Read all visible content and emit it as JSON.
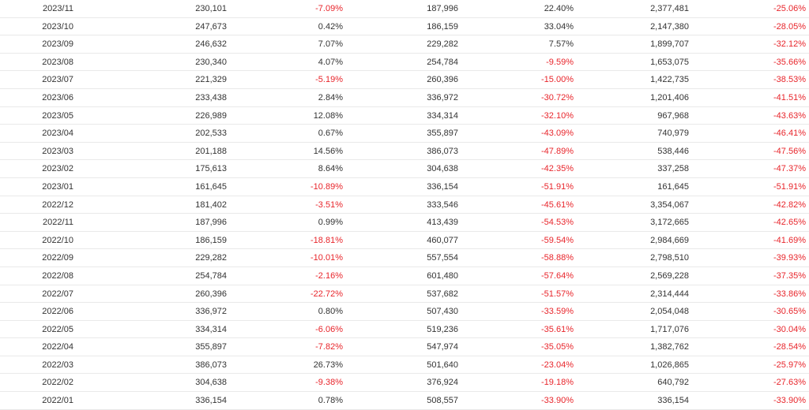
{
  "colors": {
    "text": "#333333",
    "negative": "#e8252b",
    "divider": "#e9e9e9"
  },
  "table": {
    "rows": [
      [
        "2023/11",
        "230,101",
        "-7.09%",
        "187,996",
        "22.40%",
        "2,377,481",
        "-25.06%"
      ],
      [
        "2023/10",
        "247,673",
        "0.42%",
        "186,159",
        "33.04%",
        "2,147,380",
        "-28.05%"
      ],
      [
        "2023/09",
        "246,632",
        "7.07%",
        "229,282",
        "7.57%",
        "1,899,707",
        "-32.12%"
      ],
      [
        "2023/08",
        "230,340",
        "4.07%",
        "254,784",
        "-9.59%",
        "1,653,075",
        "-35.66%"
      ],
      [
        "2023/07",
        "221,329",
        "-5.19%",
        "260,396",
        "-15.00%",
        "1,422,735",
        "-38.53%"
      ],
      [
        "2023/06",
        "233,438",
        "2.84%",
        "336,972",
        "-30.72%",
        "1,201,406",
        "-41.51%"
      ],
      [
        "2023/05",
        "226,989",
        "12.08%",
        "334,314",
        "-32.10%",
        "967,968",
        "-43.63%"
      ],
      [
        "2023/04",
        "202,533",
        "0.67%",
        "355,897",
        "-43.09%",
        "740,979",
        "-46.41%"
      ],
      [
        "2023/03",
        "201,188",
        "14.56%",
        "386,073",
        "-47.89%",
        "538,446",
        "-47.56%"
      ],
      [
        "2023/02",
        "175,613",
        "8.64%",
        "304,638",
        "-42.35%",
        "337,258",
        "-47.37%"
      ],
      [
        "2023/01",
        "161,645",
        "-10.89%",
        "336,154",
        "-51.91%",
        "161,645",
        "-51.91%"
      ],
      [
        "2022/12",
        "181,402",
        "-3.51%",
        "333,546",
        "-45.61%",
        "3,354,067",
        "-42.82%"
      ],
      [
        "2022/11",
        "187,996",
        "0.99%",
        "413,439",
        "-54.53%",
        "3,172,665",
        "-42.65%"
      ],
      [
        "2022/10",
        "186,159",
        "-18.81%",
        "460,077",
        "-59.54%",
        "2,984,669",
        "-41.69%"
      ],
      [
        "2022/09",
        "229,282",
        "-10.01%",
        "557,554",
        "-58.88%",
        "2,798,510",
        "-39.93%"
      ],
      [
        "2022/08",
        "254,784",
        "-2.16%",
        "601,480",
        "-57.64%",
        "2,569,228",
        "-37.35%"
      ],
      [
        "2022/07",
        "260,396",
        "-22.72%",
        "537,682",
        "-51.57%",
        "2,314,444",
        "-33.86%"
      ],
      [
        "2022/06",
        "336,972",
        "0.80%",
        "507,430",
        "-33.59%",
        "2,054,048",
        "-30.65%"
      ],
      [
        "2022/05",
        "334,314",
        "-6.06%",
        "519,236",
        "-35.61%",
        "1,717,076",
        "-30.04%"
      ],
      [
        "2022/04",
        "355,897",
        "-7.82%",
        "547,974",
        "-35.05%",
        "1,382,762",
        "-28.54%"
      ],
      [
        "2022/03",
        "386,073",
        "26.73%",
        "501,640",
        "-23.04%",
        "1,026,865",
        "-25.97%"
      ],
      [
        "2022/02",
        "304,638",
        "-9.38%",
        "376,924",
        "-19.18%",
        "640,792",
        "-27.63%"
      ],
      [
        "2022/01",
        "336,154",
        "0.78%",
        "508,557",
        "-33.90%",
        "336,154",
        "-33.90%"
      ]
    ]
  }
}
